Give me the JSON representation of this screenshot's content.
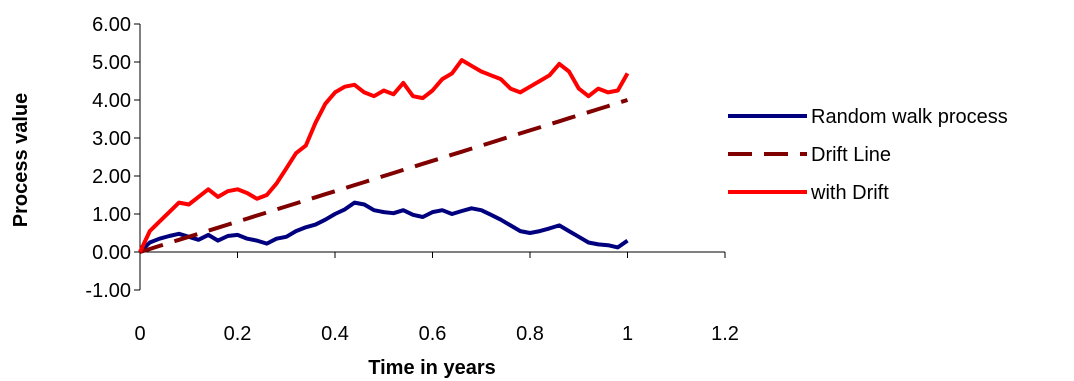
{
  "chart_data": {
    "type": "line",
    "title": "",
    "xlabel": "Time in years",
    "ylabel": "Process  value",
    "xlim": [
      0,
      1.2
    ],
    "ylim": [
      -1,
      6
    ],
    "x_ticks": [
      "0",
      "0.2",
      "0.4",
      "0.6",
      "0.8",
      "1",
      "1.2"
    ],
    "y_ticks": [
      "6.00",
      "5.00",
      "4.00",
      "3.00",
      "2.00",
      "1.00",
      "0.00",
      "-1.00"
    ],
    "grid": false,
    "legend_position": "right",
    "x": [
      0,
      0.02,
      0.04,
      0.06,
      0.08,
      0.1,
      0.12,
      0.14,
      0.16,
      0.18,
      0.2,
      0.22,
      0.24,
      0.26,
      0.28,
      0.3,
      0.32,
      0.34,
      0.36,
      0.38,
      0.4,
      0.42,
      0.44,
      0.46,
      0.48,
      0.5,
      0.52,
      0.54,
      0.56,
      0.58,
      0.6,
      0.62,
      0.64,
      0.66,
      0.68,
      0.7,
      0.72,
      0.74,
      0.76,
      0.78,
      0.8,
      0.82,
      0.84,
      0.86,
      0.88,
      0.9,
      0.92,
      0.94,
      0.96,
      0.98,
      1.0
    ],
    "series": [
      {
        "name": "Random walk process",
        "color": "#00007F",
        "dash": "solid",
        "values": [
          0.0,
          0.25,
          0.35,
          0.42,
          0.48,
          0.4,
          0.32,
          0.45,
          0.3,
          0.42,
          0.45,
          0.35,
          0.3,
          0.22,
          0.35,
          0.4,
          0.55,
          0.65,
          0.72,
          0.85,
          1.0,
          1.12,
          1.3,
          1.25,
          1.1,
          1.05,
          1.02,
          1.1,
          0.98,
          0.92,
          1.05,
          1.1,
          1.0,
          1.08,
          1.15,
          1.1,
          0.98,
          0.85,
          0.7,
          0.55,
          0.5,
          0.55,
          0.62,
          0.7,
          0.55,
          0.4,
          0.25,
          0.2,
          0.18,
          0.12,
          0.3
        ]
      },
      {
        "name": "Drift Line",
        "color": "#800000",
        "dash": "dashed",
        "values": [
          0.0,
          0.08,
          0.16,
          0.24,
          0.32,
          0.4,
          0.48,
          0.56,
          0.64,
          0.72,
          0.8,
          0.88,
          0.96,
          1.04,
          1.12,
          1.2,
          1.28,
          1.36,
          1.44,
          1.52,
          1.6,
          1.68,
          1.76,
          1.84,
          1.92,
          2.0,
          2.08,
          2.16,
          2.24,
          2.32,
          2.4,
          2.48,
          2.56,
          2.64,
          2.72,
          2.8,
          2.88,
          2.96,
          3.04,
          3.12,
          3.2,
          3.28,
          3.36,
          3.44,
          3.52,
          3.6,
          3.68,
          3.76,
          3.84,
          3.92,
          4.0
        ]
      },
      {
        "name": "with Drift",
        "color": "#FF0000",
        "dash": "solid",
        "values": [
          0.0,
          0.55,
          0.8,
          1.05,
          1.3,
          1.25,
          1.45,
          1.65,
          1.45,
          1.6,
          1.65,
          1.55,
          1.4,
          1.5,
          1.8,
          2.2,
          2.6,
          2.8,
          3.4,
          3.9,
          4.2,
          4.35,
          4.4,
          4.2,
          4.1,
          4.25,
          4.15,
          4.45,
          4.1,
          4.05,
          4.25,
          4.55,
          4.7,
          5.05,
          4.9,
          4.75,
          4.65,
          4.55,
          4.3,
          4.2,
          4.35,
          4.5,
          4.65,
          4.95,
          4.75,
          4.3,
          4.1,
          4.3,
          4.2,
          4.25,
          4.7
        ]
      }
    ]
  }
}
